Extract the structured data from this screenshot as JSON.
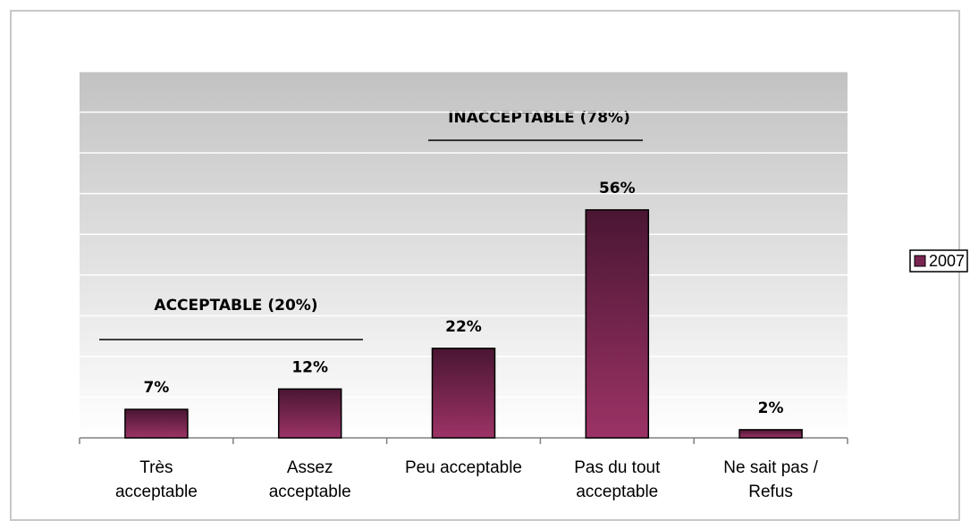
{
  "chart_data": {
    "type": "bar",
    "categories": [
      "Très acceptable",
      "Assez acceptable",
      "Peu acceptable",
      "Pas du tout acceptable",
      "Ne sait pas / Refus"
    ],
    "series": [
      {
        "name": "2007",
        "color": "#7a2550",
        "values": [
          7,
          12,
          22,
          56,
          2
        ],
        "value_labels": [
          "7%",
          "12%",
          "22%",
          "56%",
          "2%"
        ]
      }
    ],
    "ylim": [
      0,
      90
    ],
    "yticks": [
      0,
      10,
      20,
      30,
      40,
      50,
      60,
      70,
      80,
      90
    ],
    "grid": true,
    "legend": "right",
    "annotations": [
      "ACCEPTABLE (20%)",
      "INACCEPTABLE (78%)"
    ]
  }
}
